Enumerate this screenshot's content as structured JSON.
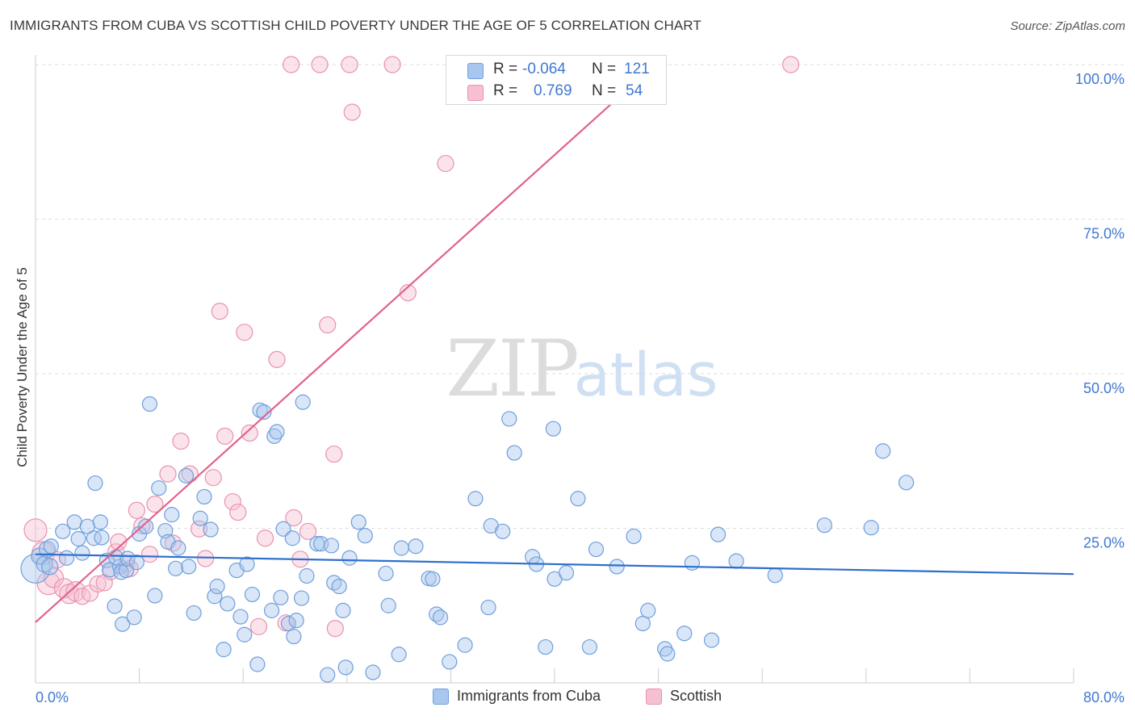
{
  "title": "IMMIGRANTS FROM CUBA VS SCOTTISH CHILD POVERTY UNDER THE AGE OF 5 CORRELATION CHART",
  "source": "Source: ZipAtlas.com",
  "watermark": {
    "zip": "ZIP",
    "atlas": "atlas"
  },
  "colors": {
    "blue_fill": "#a9c7ee",
    "blue_stroke": "#6f9fdc",
    "blue_line": "#2f6fcc",
    "pink_fill": "#f6c0d2",
    "pink_stroke": "#e892ae",
    "pink_line": "#e2628d",
    "axis_text": "#3f78d0",
    "grid": "#dddddd"
  },
  "stats_legend": {
    "rows": [
      {
        "r_label": "R =",
        "r_value": "-0.064",
        "n_label": "N =",
        "n_value": "121",
        "series": "blue"
      },
      {
        "r_label": "R =",
        "r_value": "0.769",
        "n_label": "N =",
        "n_value": "54",
        "series": "pink"
      }
    ]
  },
  "chart_data": {
    "type": "scatter",
    "xlabel": "",
    "ylabel": "Child Poverty Under the Age of 5",
    "xlim": [
      0,
      80
    ],
    "ylim": [
      0,
      100
    ],
    "x_tick_labels": [
      "0.0%",
      "80.0%"
    ],
    "y_tick_labels": [
      "25.0%",
      "50.0%",
      "75.0%",
      "100.0%"
    ],
    "y_ticks": [
      25,
      50,
      75,
      100
    ],
    "grid": true,
    "legend_placement": "bottom",
    "series": [
      {
        "name": "Immigrants from Cuba",
        "color": "blue",
        "trend": [
          [
            0,
            20.8
          ],
          [
            80,
            17.6
          ]
        ],
        "points": [
          [
            0,
            18.5,
            18
          ],
          [
            0.3,
            20.5,
            10
          ],
          [
            0.7,
            19.2,
            10
          ],
          [
            1.1,
            18.8,
            10
          ],
          [
            0.9,
            21.6,
            10
          ],
          [
            1.2,
            22.1,
            9
          ],
          [
            2.1,
            24.5,
            9
          ],
          [
            2.4,
            20.2,
            9
          ],
          [
            3.0,
            26.0,
            9
          ],
          [
            3.3,
            23.3,
            9
          ],
          [
            3.6,
            21.0,
            9
          ],
          [
            4.0,
            25.3,
            9
          ],
          [
            4.5,
            23.4,
            9
          ],
          [
            4.6,
            32.3,
            9
          ],
          [
            5.0,
            26.0,
            9
          ],
          [
            5.1,
            23.5,
            9
          ],
          [
            5.5,
            19.8,
            9
          ],
          [
            5.7,
            18.3,
            9
          ],
          [
            6.1,
            12.4,
            9
          ],
          [
            6.5,
            18.8,
            9
          ],
          [
            6.2,
            20.3,
            9
          ],
          [
            6.6,
            17.9,
            9
          ],
          [
            6.7,
            9.5,
            9
          ],
          [
            7.0,
            18.2,
            9
          ],
          [
            7.1,
            20.1,
            9
          ],
          [
            7.6,
            10.6,
            9
          ],
          [
            7.8,
            19.5,
            9
          ],
          [
            8.0,
            24.1,
            9
          ],
          [
            8.5,
            25.3,
            9
          ],
          [
            8.8,
            45.1,
            9
          ],
          [
            9.2,
            14.1,
            9
          ],
          [
            9.5,
            31.5,
            9
          ],
          [
            10.0,
            24.6,
            9
          ],
          [
            10.2,
            22.8,
            9
          ],
          [
            10.5,
            27.2,
            9
          ],
          [
            10.8,
            18.5,
            9
          ],
          [
            11.0,
            21.8,
            9
          ],
          [
            11.6,
            33.5,
            9
          ],
          [
            11.8,
            18.8,
            9
          ],
          [
            12.2,
            11.3,
            9
          ],
          [
            12.7,
            26.6,
            9
          ],
          [
            13.0,
            30.1,
            9
          ],
          [
            13.5,
            24.8,
            9
          ],
          [
            13.8,
            14.0,
            9
          ],
          [
            14.0,
            15.6,
            9
          ],
          [
            14.5,
            5.4,
            9
          ],
          [
            14.8,
            12.8,
            9
          ],
          [
            15.5,
            18.2,
            9
          ],
          [
            15.8,
            10.7,
            9
          ],
          [
            16.1,
            7.8,
            9
          ],
          [
            16.3,
            19.2,
            9
          ],
          [
            16.7,
            14.3,
            9
          ],
          [
            17.1,
            3.0,
            9
          ],
          [
            17.3,
            44.1,
            9
          ],
          [
            17.6,
            43.8,
            9
          ],
          [
            18.2,
            11.7,
            9
          ],
          [
            18.4,
            39.9,
            9
          ],
          [
            18.6,
            40.6,
            9
          ],
          [
            18.9,
            13.8,
            9
          ],
          [
            19.1,
            24.9,
            9
          ],
          [
            19.5,
            9.6,
            9
          ],
          [
            19.8,
            23.4,
            9
          ],
          [
            19.9,
            7.5,
            9
          ],
          [
            20.1,
            10.1,
            9
          ],
          [
            20.5,
            13.7,
            9
          ],
          [
            20.6,
            45.4,
            9
          ],
          [
            20.9,
            17.3,
            9
          ],
          [
            21.7,
            22.5,
            9
          ],
          [
            22.0,
            22.5,
            9
          ],
          [
            22.5,
            1.3,
            9
          ],
          [
            22.8,
            22.2,
            9
          ],
          [
            23.0,
            16.2,
            9
          ],
          [
            23.4,
            15.6,
            9
          ],
          [
            23.7,
            11.7,
            9
          ],
          [
            23.9,
            2.5,
            9
          ],
          [
            24.2,
            20.2,
            9
          ],
          [
            24.9,
            26.0,
            9
          ],
          [
            25.4,
            23.8,
            9
          ],
          [
            26.0,
            1.7,
            9
          ],
          [
            27.0,
            17.7,
            9
          ],
          [
            27.2,
            12.5,
            9
          ],
          [
            28.0,
            4.6,
            9
          ],
          [
            28.2,
            21.8,
            9
          ],
          [
            29.3,
            22.1,
            9
          ],
          [
            30.3,
            16.9,
            9
          ],
          [
            30.6,
            16.8,
            9
          ],
          [
            30.9,
            11.1,
            9
          ],
          [
            31.2,
            10.6,
            9
          ],
          [
            31.9,
            3.4,
            9
          ],
          [
            33.1,
            6.1,
            9
          ],
          [
            33.9,
            29.8,
            9
          ],
          [
            34.9,
            12.2,
            9
          ],
          [
            35.1,
            25.4,
            9
          ],
          [
            36.0,
            24.5,
            9
          ],
          [
            36.5,
            42.7,
            9
          ],
          [
            36.9,
            37.2,
            9
          ],
          [
            38.3,
            20.4,
            9
          ],
          [
            38.6,
            19.2,
            9
          ],
          [
            39.3,
            5.8,
            9
          ],
          [
            39.9,
            41.1,
            9
          ],
          [
            40.0,
            16.8,
            9
          ],
          [
            40.9,
            17.8,
            9
          ],
          [
            41.8,
            29.8,
            9
          ],
          [
            42.7,
            5.8,
            9
          ],
          [
            43.2,
            21.6,
            9
          ],
          [
            44.8,
            18.8,
            9
          ],
          [
            46.1,
            23.7,
            9
          ],
          [
            46.8,
            9.6,
            9
          ],
          [
            47.2,
            11.7,
            9
          ],
          [
            48.5,
            5.5,
            9
          ],
          [
            48.7,
            4.7,
            9
          ],
          [
            50.0,
            8.0,
            9
          ],
          [
            50.6,
            19.4,
            9
          ],
          [
            52.1,
            6.9,
            9
          ],
          [
            52.6,
            24.0,
            9
          ],
          [
            54.0,
            19.7,
            9
          ],
          [
            57.0,
            17.4,
            9
          ],
          [
            60.8,
            25.5,
            9
          ],
          [
            64.4,
            25.1,
            9
          ],
          [
            65.3,
            37.5,
            9
          ],
          [
            67.1,
            32.4,
            9
          ]
        ]
      },
      {
        "name": "Scottish",
        "color": "pink",
        "trend": [
          [
            0,
            9.8
          ],
          [
            48,
            100.5
          ]
        ],
        "points": [
          [
            0,
            24.7,
            14
          ],
          [
            0.6,
            21.0,
            14
          ],
          [
            1.0,
            16.1,
            14
          ],
          [
            1.4,
            17.0,
            12
          ],
          [
            1.7,
            19.9,
            10
          ],
          [
            2.2,
            15.3,
            12
          ],
          [
            2.6,
            14.4,
            12
          ],
          [
            3.1,
            14.8,
            12
          ],
          [
            3.6,
            14.0,
            10
          ],
          [
            4.2,
            14.5,
            10
          ],
          [
            4.8,
            16.0,
            10
          ],
          [
            5.3,
            16.2,
            10
          ],
          [
            5.8,
            18.0,
            10
          ],
          [
            6.2,
            21.2,
            10
          ],
          [
            6.4,
            22.8,
            10
          ],
          [
            7.0,
            19.2,
            10
          ],
          [
            7.3,
            18.5,
            10
          ],
          [
            7.8,
            27.9,
            10
          ],
          [
            8.2,
            25.4,
            10
          ],
          [
            8.8,
            20.8,
            10
          ],
          [
            9.2,
            28.9,
            10
          ],
          [
            10.2,
            33.8,
            10
          ],
          [
            10.6,
            22.6,
            10
          ],
          [
            11.2,
            39.1,
            10
          ],
          [
            11.9,
            33.8,
            10
          ],
          [
            12.6,
            24.9,
            10
          ],
          [
            13.1,
            20.1,
            10
          ],
          [
            13.7,
            33.2,
            10
          ],
          [
            14.2,
            60.1,
            10
          ],
          [
            14.6,
            39.9,
            10
          ],
          [
            15.2,
            29.3,
            10
          ],
          [
            15.6,
            27.6,
            10
          ],
          [
            16.1,
            56.7,
            10
          ],
          [
            16.5,
            40.4,
            10
          ],
          [
            17.2,
            9.1,
            10
          ],
          [
            17.7,
            23.4,
            10
          ],
          [
            18.6,
            52.3,
            10
          ],
          [
            19.3,
            9.7,
            10
          ],
          [
            19.7,
            100.0,
            10
          ],
          [
            19.9,
            26.7,
            10
          ],
          [
            20.4,
            20.0,
            10
          ],
          [
            21.0,
            24.5,
            10
          ],
          [
            21.9,
            100.0,
            10
          ],
          [
            22.5,
            57.9,
            10
          ],
          [
            23.0,
            37.0,
            10
          ],
          [
            23.1,
            8.8,
            10
          ],
          [
            24.2,
            100.0,
            10
          ],
          [
            24.4,
            92.3,
            10
          ],
          [
            27.5,
            100.0,
            10
          ],
          [
            28.7,
            63.1,
            10
          ],
          [
            31.6,
            84.0,
            10
          ],
          [
            43.6,
            100.0,
            10
          ],
          [
            48.0,
            100.0,
            10
          ],
          [
            58.2,
            100.0,
            10
          ]
        ]
      }
    ]
  }
}
